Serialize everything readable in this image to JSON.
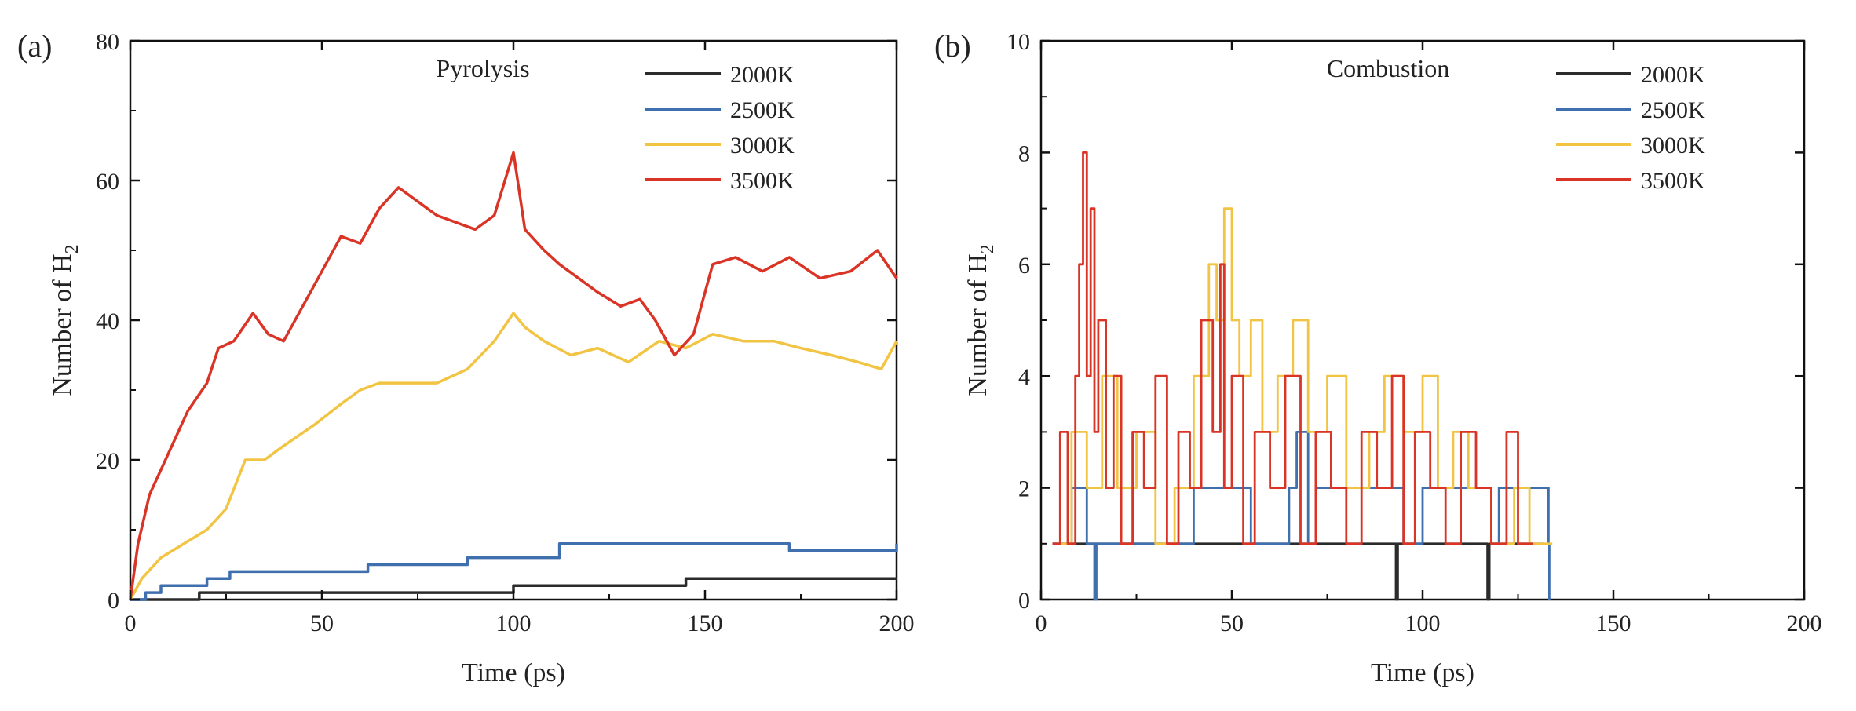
{
  "figure": {
    "colors": {
      "2000K": "#2b2b2b",
      "2500K": "#3f6fad",
      "3000K": "#f2c443",
      "3500K": "#d93425"
    }
  },
  "chart_data": [
    {
      "panel_label": "(a)",
      "type": "line",
      "title": "Pyrolysis",
      "xlabel": "Time (ps)",
      "ylabel_main": "Number of H",
      "ylabel_sub": "2",
      "xlim": [
        0,
        200
      ],
      "ylim": [
        0,
        80
      ],
      "xticks": [
        0,
        50,
        100,
        150,
        200
      ],
      "yticks": [
        0,
        20,
        40,
        60,
        80
      ],
      "legend": [
        "2000K",
        "2500K",
        "3000K",
        "3500K"
      ],
      "legend_position": "top-right",
      "series": [
        {
          "name": "2000K",
          "step": true,
          "x": [
            0,
            18,
            100,
            145,
            200
          ],
          "y": [
            0,
            1,
            2,
            3,
            3
          ]
        },
        {
          "name": "2500K",
          "step": true,
          "x": [
            0,
            4,
            8,
            20,
            26,
            35,
            62,
            88,
            112,
            172,
            200
          ],
          "y": [
            0,
            1,
            2,
            3,
            4,
            4,
            5,
            6,
            8,
            7,
            8
          ]
        },
        {
          "name": "3000K",
          "x": [
            0,
            3,
            8,
            14,
            20,
            25,
            30,
            35,
            40,
            48,
            55,
            60,
            65,
            70,
            80,
            88,
            95,
            100,
            103,
            108,
            115,
            122,
            130,
            138,
            145,
            152,
            160,
            168,
            175,
            183,
            190,
            196,
            200
          ],
          "y": [
            0,
            3,
            6,
            8,
            10,
            13,
            20,
            20,
            22,
            25,
            28,
            30,
            31,
            31,
            31,
            33,
            37,
            41,
            39,
            37,
            35,
            36,
            34,
            37,
            36,
            38,
            37,
            37,
            36,
            35,
            34,
            33,
            37
          ]
        },
        {
          "name": "3500K",
          "x": [
            0,
            2,
            5,
            10,
            15,
            20,
            23,
            27,
            32,
            36,
            40,
            45,
            50,
            55,
            60,
            65,
            70,
            75,
            80,
            85,
            90,
            95,
            100,
            103,
            108,
            112,
            117,
            122,
            128,
            133,
            137,
            142,
            147,
            152,
            158,
            165,
            172,
            180,
            188,
            195,
            200
          ],
          "y": [
            0,
            8,
            15,
            21,
            27,
            31,
            36,
            37,
            41,
            38,
            37,
            42,
            47,
            52,
            51,
            56,
            59,
            57,
            55,
            54,
            53,
            55,
            64,
            53,
            50,
            48,
            46,
            44,
            42,
            43,
            40,
            35,
            38,
            48,
            49,
            47,
            49,
            46,
            47,
            50,
            46
          ]
        }
      ]
    },
    {
      "panel_label": "(b)",
      "type": "line",
      "title": "Combustion",
      "xlabel": "Time (ps)",
      "ylabel_main": "Number of H",
      "ylabel_sub": "2",
      "xlim": [
        0,
        200
      ],
      "ylim": [
        0,
        10
      ],
      "xticks": [
        0,
        50,
        100,
        150,
        200
      ],
      "yticks": [
        0,
        2,
        4,
        6,
        8,
        10
      ],
      "legend": [
        "2000K",
        "2500K",
        "3000K",
        "3500K"
      ],
      "legend_position": "top-right",
      "series": [
        {
          "name": "2000K",
          "step": true,
          "x": [
            3,
            93,
            93.5,
            117,
            117.5,
            132
          ],
          "y": [
            1,
            0,
            1,
            0,
            1,
            1
          ]
        },
        {
          "name": "2500K",
          "step": true,
          "x": [
            3,
            8,
            12,
            14,
            14.5,
            40,
            55,
            65,
            67,
            70,
            72,
            95,
            100,
            118,
            120,
            133,
            133.2
          ],
          "y": [
            1,
            2,
            1,
            0,
            1,
            2,
            1,
            2,
            3,
            1,
            2,
            1,
            2,
            1,
            2,
            1,
            0
          ]
        },
        {
          "name": "3000K",
          "step": true,
          "x": [
            4,
            8,
            12,
            16,
            20,
            25,
            30,
            35,
            40,
            44,
            46,
            48,
            50,
            52,
            55,
            58,
            62,
            66,
            70,
            75,
            80,
            86,
            90,
            95,
            100,
            104,
            108,
            112,
            118,
            124,
            128,
            134
          ],
          "y": [
            1,
            3,
            2,
            4,
            2,
            3,
            1,
            2,
            4,
            6,
            5,
            7,
            5,
            4,
            5,
            3,
            4,
            5,
            3,
            4,
            2,
            3,
            4,
            3,
            4,
            2,
            3,
            2,
            1,
            2,
            1,
            1
          ]
        },
        {
          "name": "3500K",
          "step": true,
          "x": [
            3,
            5,
            7,
            9,
            10,
            11,
            12,
            13,
            14,
            15,
            17,
            19,
            21,
            24,
            27,
            30,
            33,
            36,
            39,
            42,
            45,
            47,
            48,
            50,
            53,
            56,
            60,
            64,
            68,
            72,
            76,
            80,
            84,
            88,
            92,
            95,
            98,
            102,
            106,
            110,
            114,
            118,
            122,
            125,
            129
          ],
          "y": [
            1,
            3,
            1,
            4,
            6,
            8,
            4,
            7,
            3,
            5,
            2,
            4,
            1,
            3,
            2,
            4,
            1,
            3,
            2,
            5,
            3,
            6,
            2,
            4,
            1,
            3,
            2,
            4,
            1,
            3,
            2,
            1,
            3,
            2,
            4,
            1,
            3,
            2,
            1,
            3,
            2,
            1,
            3,
            1,
            1
          ]
        }
      ]
    }
  ]
}
